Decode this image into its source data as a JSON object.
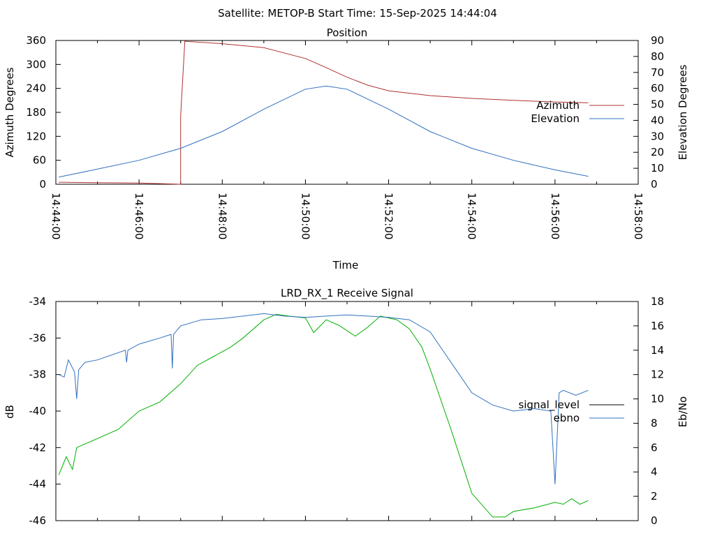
{
  "header": {
    "text": "Satellite: METOP-B    Start Time: 15-Sep-2025 14:44:04"
  },
  "chart_data": [
    {
      "type": "line",
      "title": "Position",
      "xlabel": "Time",
      "ylabel": "Azimuth Degrees",
      "y2label": "Elevation Degrees",
      "x_unit": "minutes after 14:44:00",
      "xlim": [
        0,
        14
      ],
      "ylim": [
        0,
        360
      ],
      "y2lim": [
        0,
        90
      ],
      "x_ticks": [
        0,
        2,
        4,
        6,
        8,
        10,
        12,
        14
      ],
      "x_tick_labels": [
        "14:44:00",
        "14:46:00",
        "14:48:00",
        "14:50:00",
        "14:52:00",
        "14:54:00",
        "14:56:00",
        "14:58:00"
      ],
      "y_ticks": [
        0,
        60,
        120,
        180,
        240,
        300,
        360
      ],
      "y_tick_labels": [
        "0",
        "60",
        "120",
        "180",
        "240",
        "300",
        "360"
      ],
      "y2_ticks": [
        0,
        10,
        20,
        30,
        40,
        50,
        60,
        70,
        80,
        90
      ],
      "y2_tick_labels": [
        "0",
        "10",
        "20",
        "30",
        "40",
        "50",
        "60",
        "70",
        "80",
        "90"
      ],
      "grid": false,
      "legend_position": "right",
      "series": [
        {
          "name": "Azimuth",
          "axis": "y",
          "color": "#b03030",
          "x": [
            0.07,
            1.0,
            2.0,
            3.0,
            3.0,
            3.1,
            4.0,
            5.0,
            6.0,
            6.5,
            7.0,
            7.5,
            8.0,
            9.0,
            10.0,
            11.0,
            12.0,
            12.8
          ],
          "y": [
            5,
            4,
            3,
            0,
            170,
            358,
            352,
            342,
            315,
            292,
            268,
            248,
            234,
            222,
            215,
            210,
            206,
            204
          ]
        },
        {
          "name": "Elevation",
          "axis": "y2",
          "color": "#3070c0",
          "x": [
            0.07,
            1.0,
            2.0,
            3.0,
            4.0,
            5.0,
            6.0,
            6.5,
            7.0,
            8.0,
            9.0,
            10.0,
            11.0,
            12.0,
            12.8
          ],
          "y": [
            4.5,
            9.5,
            15,
            22.5,
            33,
            47,
            59.5,
            61.5,
            59.5,
            47,
            33,
            22.5,
            15,
            9,
            5
          ]
        }
      ]
    },
    {
      "type": "line",
      "title": "LRD_RX_1 Receive Signal",
      "ylabel": "dB",
      "y2label": "Eb/No",
      "x_unit": "minutes after 14:44:00",
      "xlim": [
        0,
        14
      ],
      "ylim": [
        -46,
        -34
      ],
      "y2lim": [
        0,
        18
      ],
      "x_ticks": [
        0,
        2,
        4,
        6,
        8,
        10,
        12,
        14
      ],
      "y_ticks": [
        -46,
        -44,
        -42,
        -40,
        -38,
        -36,
        -34
      ],
      "y_tick_labels": [
        "-46",
        "-44",
        "-42",
        "-40",
        "-38",
        "-36",
        "-34"
      ],
      "y2_ticks": [
        0,
        2,
        4,
        6,
        8,
        10,
        12,
        14,
        16,
        18
      ],
      "y2_tick_labels": [
        "0",
        "2",
        "4",
        "6",
        "8",
        "10",
        "12",
        "14",
        "16",
        "18"
      ],
      "grid": false,
      "legend_position": "right",
      "legend": [
        {
          "name": "signal_level",
          "color": "#000000"
        },
        {
          "name": "ebno",
          "color": "#3070c0"
        }
      ],
      "series": [
        {
          "name": "",
          "axis": "y",
          "color": "#00b000",
          "x": [
            0.07,
            0.25,
            0.4,
            0.5,
            1.0,
            1.5,
            2.0,
            2.5,
            3.0,
            3.4,
            3.8,
            4.2,
            4.5,
            5.0,
            5.3,
            5.6,
            6.0,
            6.2,
            6.5,
            6.8,
            7.2,
            7.5,
            7.8,
            8.2,
            8.5,
            8.8,
            9.0,
            9.5,
            10.0,
            10.5,
            10.8,
            11.0,
            11.5,
            12.0,
            12.2,
            12.4,
            12.6,
            12.8
          ],
          "y": [
            -43.5,
            -42.5,
            -43.2,
            -42.0,
            -41.5,
            -41.0,
            -40.0,
            -39.5,
            -38.5,
            -37.5,
            -37.0,
            -36.5,
            -36.0,
            -35.0,
            -34.7,
            -34.8,
            -34.9,
            -35.7,
            -35.0,
            -35.3,
            -35.9,
            -35.4,
            -34.8,
            -35.0,
            -35.5,
            -36.5,
            -37.7,
            -41.0,
            -44.5,
            -45.8,
            -45.8,
            -45.5,
            -45.3,
            -45.0,
            -45.1,
            -44.8,
            -45.1,
            -44.9
          ]
        },
        {
          "name": "ebno",
          "axis": "y2",
          "color": "#3070c0",
          "x": [
            0.07,
            0.2,
            0.3,
            0.45,
            0.5,
            0.55,
            0.7,
            1.0,
            1.5,
            1.67,
            1.7,
            1.73,
            2.0,
            2.5,
            2.77,
            2.8,
            2.83,
            3.0,
            3.5,
            4.0,
            4.5,
            5.0,
            5.5,
            6.0,
            6.5,
            7.0,
            7.5,
            8.0,
            8.5,
            9.0,
            9.5,
            10.0,
            10.5,
            11.0,
            11.5,
            11.9,
            12.0,
            12.1,
            12.2,
            12.5,
            12.8
          ],
          "y": [
            12.0,
            11.8,
            13.2,
            12.2,
            10.0,
            12.4,
            13.0,
            13.2,
            13.8,
            14.0,
            13.0,
            14.0,
            14.5,
            15.0,
            15.3,
            12.5,
            15.3,
            16.0,
            16.5,
            16.6,
            16.8,
            17.0,
            16.8,
            16.7,
            16.8,
            16.9,
            16.8,
            16.7,
            16.5,
            15.5,
            13.0,
            10.5,
            9.5,
            9.0,
            9.2,
            9.0,
            3.0,
            10.5,
            10.7,
            10.3,
            10.7
          ]
        }
      ]
    }
  ]
}
